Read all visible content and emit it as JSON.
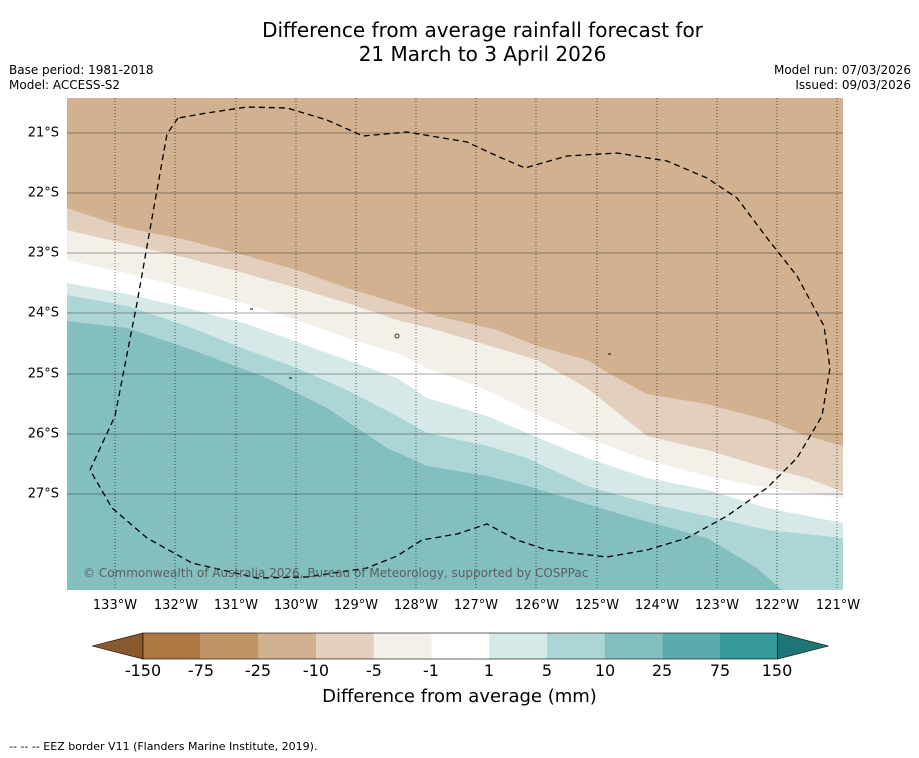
{
  "title": {
    "line1": "Difference from average rainfall forecast for",
    "line2": "21 March to 3 April 2026"
  },
  "meta": {
    "base_period": "Base period: 1981-2018",
    "model": "Model: ACCESS-S2",
    "model_run": "Model run: 07/03/2026",
    "issued": "Issued: 09/03/2026"
  },
  "map": {
    "lat_labels": [
      "21°S",
      "22°S",
      "23°S",
      "24°S",
      "25°S",
      "26°S",
      "27°S"
    ],
    "lon_labels": [
      "133°W",
      "132°W",
      "131°W",
      "130°W",
      "129°W",
      "128°W",
      "127°W",
      "126°W",
      "125°W",
      "124°W",
      "123°W",
      "122°W",
      "121°W"
    ],
    "lon_range": [
      -133.8,
      -120.9
    ],
    "lat_range": [
      -20.4,
      -28.6
    ],
    "copyright": "© Commonwealth of Australia 2026, Bureau of Meteorology, supported by COSPPac"
  },
  "colorbar": {
    "ticks": [
      "-150",
      "-75",
      "-25",
      "-10",
      "-5",
      "-1",
      "1",
      "5",
      "10",
      "25",
      "75",
      "150"
    ],
    "colors": [
      "#ad7843",
      "#c19467",
      "#d1b190",
      "#e3cfbd",
      "#f3efe9",
      "#ffffff",
      "#d5e9e9",
      "#acd5d5",
      "#84bfbf",
      "#5aabab",
      "#35999a",
      "#1f7575",
      "#8a5a2e"
    ],
    "label": "Difference from average (mm)"
  },
  "footer": "--  --  -- EEZ border V11 (Flanders Marine Institute, 2019)."
}
